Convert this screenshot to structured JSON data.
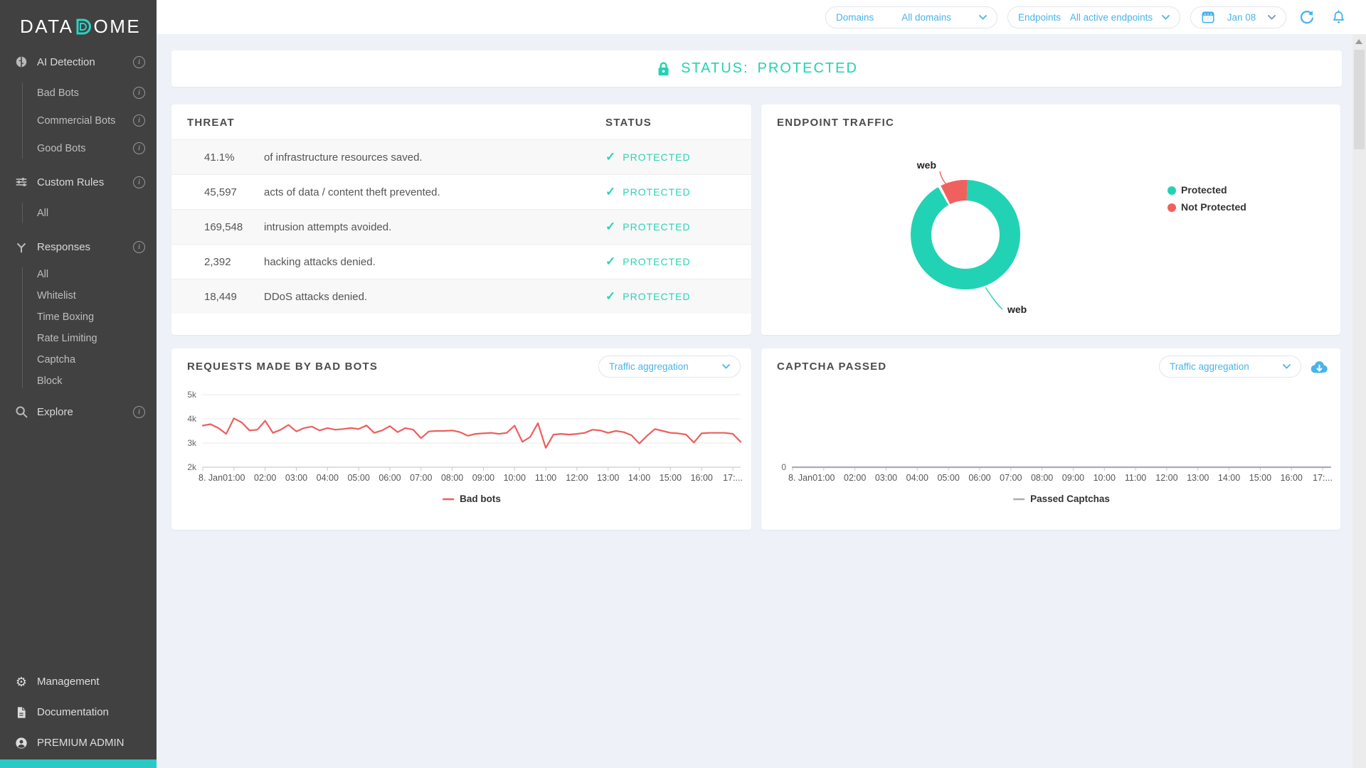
{
  "brand": {
    "logo_prefix": "DATA",
    "logo_d_letter": "D",
    "logo_suffix": "OME"
  },
  "colors": {
    "teal": "#22d2b4",
    "red": "#f0605e",
    "blue": "#4ab3ea",
    "sidebar_bg": "#414141",
    "content_bg": "#eef2f8",
    "line_red": "#ed5e5e",
    "line_gray": "#a9adb2"
  },
  "topbar": {
    "domains_label": "Domains",
    "domains_value": "All domains",
    "endpoints_label": "Endpoints",
    "endpoints_value": "All active endpoints",
    "date_value": "Jan 08"
  },
  "sidebar": {
    "nav": [
      {
        "type": "section",
        "icon": "brain-icon",
        "label": "AI Detection",
        "info": true
      },
      {
        "type": "group",
        "spacing": "spaced",
        "items": [
          {
            "label": "Bad Bots",
            "info": true
          },
          {
            "label": "Commercial Bots",
            "info": true
          },
          {
            "label": "Good Bots",
            "info": true
          }
        ]
      },
      {
        "type": "section",
        "icon": "sliders-icon",
        "label": "Custom Rules",
        "info": true
      },
      {
        "type": "group",
        "spacing": "spaced",
        "items": [
          {
            "label": "All",
            "info": false
          }
        ]
      },
      {
        "type": "section",
        "icon": "branch-icon",
        "label": "Responses",
        "info": true
      },
      {
        "type": "group",
        "spacing": "tight",
        "items": [
          {
            "label": "All",
            "info": false
          },
          {
            "label": "Whitelist",
            "info": false
          },
          {
            "label": "Time Boxing",
            "info": false
          },
          {
            "label": "Rate Limiting",
            "info": false
          },
          {
            "label": "Captcha",
            "info": false
          },
          {
            "label": "Block",
            "info": false
          }
        ]
      },
      {
        "type": "section",
        "icon": "search-icon",
        "label": "Explore",
        "info": true
      }
    ],
    "bottom": [
      {
        "label": "Management",
        "icon": "gear-icon"
      },
      {
        "label": "Documentation",
        "icon": "document-icon"
      },
      {
        "label": "PREMIUM ADMIN",
        "icon": "user-icon"
      }
    ]
  },
  "status_banner": {
    "label": "STATUS:",
    "value": "PROTECTED"
  },
  "threat_card": {
    "title": "THREAT",
    "status_header": "STATUS",
    "rows": [
      {
        "value": "41.1%",
        "description": "of infrastructure resources saved.",
        "status": "PROTECTED"
      },
      {
        "value": "45,597",
        "description": "acts of data / content theft prevented.",
        "status": "PROTECTED"
      },
      {
        "value": "169,548",
        "description": "intrusion attempts avoided.",
        "status": "PROTECTED"
      },
      {
        "value": "2,392",
        "description": "hacking attacks denied.",
        "status": "PROTECTED"
      },
      {
        "value": "18,449",
        "description": "DDoS attacks denied.",
        "status": "PROTECTED"
      }
    ]
  },
  "endpoint_card": {
    "title": "ENDPOINT TRAFFIC"
  },
  "badbots_card": {
    "title": "REQUESTS MADE BY BAD BOTS",
    "dropdown_label": "Traffic aggregation"
  },
  "captcha_card": {
    "title": "CAPTCHA PASSED",
    "dropdown_label": "Traffic aggregation"
  },
  "chart_data": [
    {
      "type": "pie",
      "subtype": "donut",
      "title": "ENDPOINT TRAFFIC",
      "slices": [
        {
          "label": "web",
          "name": "Protected",
          "value": 92,
          "color": "#22d2b4"
        },
        {
          "label": "web",
          "name": "Not Protected",
          "value": 8,
          "color": "#f0605e"
        }
      ],
      "legend": [
        {
          "label": "Protected",
          "color": "#22d2b4"
        },
        {
          "label": "Not Protected",
          "color": "#f0605e"
        }
      ],
      "legend_position": "right"
    },
    {
      "type": "line",
      "title": "REQUESTS MADE BY BAD BOTS",
      "x_labels": [
        "8. Jan",
        "01:00",
        "02:00",
        "03:00",
        "04:00",
        "05:00",
        "06:00",
        "07:00",
        "08:00",
        "09:00",
        "10:00",
        "11:00",
        "12:00",
        "13:00",
        "14:00",
        "15:00",
        "16:00",
        "17:..."
      ],
      "points_per_hour": 4,
      "ylim": [
        2000,
        5000
      ],
      "grid": true,
      "yticks": [
        {
          "label": "2k",
          "value": 2000
        },
        {
          "label": "3k",
          "value": 3000
        },
        {
          "label": "4k",
          "value": 4000
        },
        {
          "label": "5k",
          "value": 5000
        }
      ],
      "legend": {
        "label": "Bad bots",
        "position": "bottom-center"
      },
      "series": [
        {
          "name": "Bad bots",
          "color": "#ed5e5e",
          "values": [
            3720,
            3780,
            3620,
            3380,
            4020,
            3850,
            3520,
            3550,
            3920,
            3420,
            3550,
            3750,
            3480,
            3620,
            3680,
            3520,
            3620,
            3550,
            3580,
            3620,
            3580,
            3730,
            3420,
            3520,
            3700,
            3450,
            3620,
            3550,
            3200,
            3480,
            3500,
            3500,
            3520,
            3450,
            3300,
            3380,
            3400,
            3420,
            3380,
            3420,
            3720,
            3050,
            3250,
            3820,
            2800,
            3350,
            3380,
            3350,
            3380,
            3420,
            3550,
            3520,
            3420,
            3500,
            3450,
            3320,
            2980,
            3300,
            3580,
            3500,
            3420,
            3400,
            3350,
            3020,
            3400,
            3420,
            3420,
            3420,
            3380,
            3050
          ]
        }
      ]
    },
    {
      "type": "line",
      "title": "CAPTCHA PASSED",
      "x_labels": [
        "8. Jan",
        "01:00",
        "02:00",
        "03:00",
        "04:00",
        "05:00",
        "06:00",
        "07:00",
        "08:00",
        "09:00",
        "10:00",
        "11:00",
        "12:00",
        "13:00",
        "14:00",
        "15:00",
        "16:00",
        "17:..."
      ],
      "points_per_hour": 4,
      "ylim": [
        0,
        3000
      ],
      "grid": false,
      "yticks": [
        {
          "label": "0",
          "value": 0
        }
      ],
      "legend": {
        "label": "Passed Captchas",
        "position": "bottom-center"
      },
      "series": [
        {
          "name": "Passed Captchas",
          "color": "#a9adb2",
          "constant_value": 0,
          "num_points": 70
        }
      ]
    }
  ]
}
